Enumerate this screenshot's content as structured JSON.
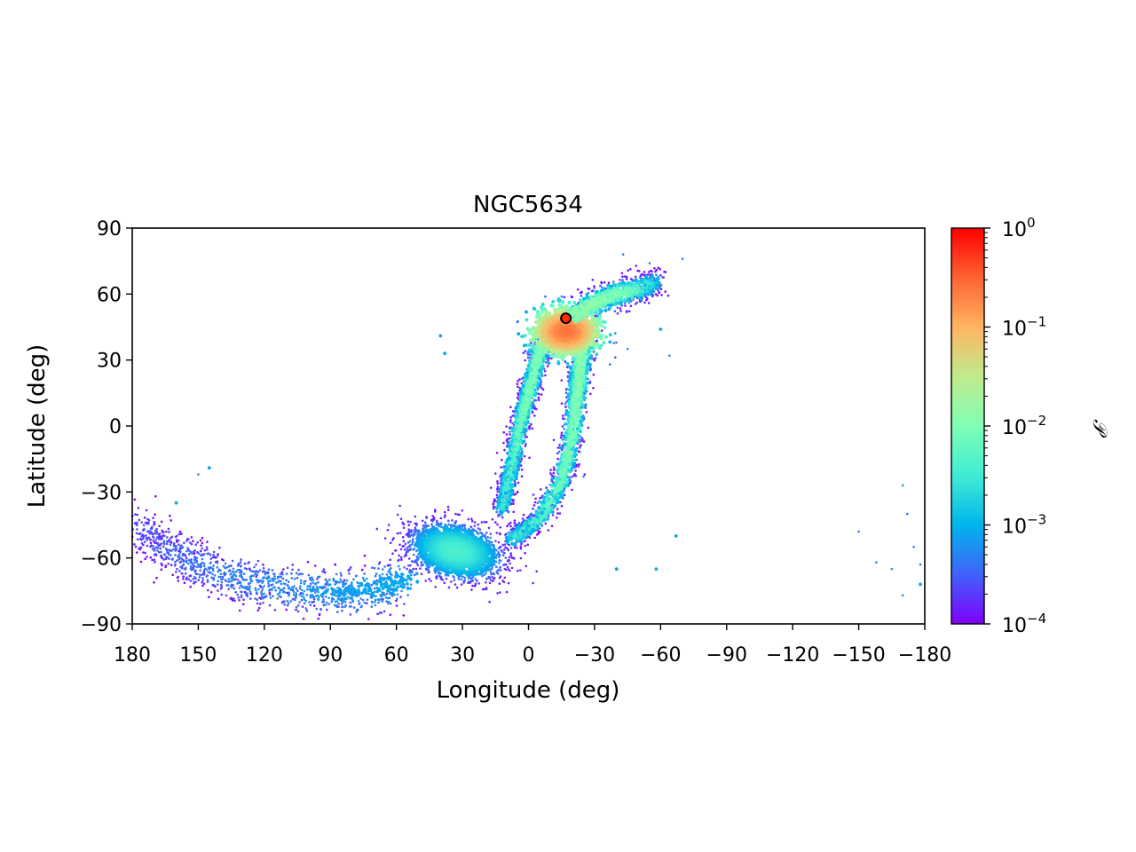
{
  "chart_data": {
    "type": "scatter",
    "title": "NGC5634",
    "xlabel": "Longitude (deg)",
    "ylabel": "Latitude (deg)",
    "xlim": [
      180,
      -180
    ],
    "ylim": [
      -90,
      90
    ],
    "xticks": [
      180,
      150,
      120,
      90,
      60,
      30,
      0,
      -30,
      -60,
      -90,
      -120,
      -150,
      -180
    ],
    "xtick_labels": [
      "180",
      "150",
      "120",
      "90",
      "60",
      "30",
      "0",
      "−30",
      "−60",
      "−90",
      "−120",
      "−150",
      "−180"
    ],
    "yticks": [
      90,
      60,
      30,
      0,
      -30,
      -60,
      -90
    ],
    "ytick_labels": [
      "90",
      "60",
      "30",
      "0",
      "−30",
      "−60",
      "−90"
    ],
    "grid": false,
    "colorbar": {
      "label": "𝒫",
      "scale": "log",
      "range": [
        0.0001,
        1
      ],
      "tick_values": [
        1,
        0.1,
        0.01,
        0.001,
        0.0001
      ],
      "tick_bases": [
        "10",
        "10",
        "10",
        "10",
        "10"
      ],
      "tick_exponents": [
        "0",
        "−1",
        "−2",
        "−3",
        "−4"
      ],
      "colormap": "rainbow",
      "colors": [
        "#8000ff",
        "#4062fa",
        "#00b5eb",
        "#40ecd4",
        "#80ffb4",
        "#c0eb8d",
        "#ffb462",
        "#ff6232",
        "#ff0000"
      ]
    },
    "cluster_marker": {
      "name": "NGC5634",
      "lon": -17,
      "lat": 49,
      "fill": "#ff2a00",
      "edge": "#000000"
    },
    "stream_features": [
      {
        "name": "dense core",
        "lon_range": [
          -35,
          -5
        ],
        "lat_range": [
          35,
          55
        ],
        "peak_probability": 0.2
      },
      {
        "name": "leading tail",
        "lon_range": [
          -60,
          -20
        ],
        "lat_range": [
          50,
          78
        ],
        "peak_probability": 0.01
      },
      {
        "name": "left trailing arm",
        "lon_range": [
          -5,
          20
        ],
        "lat_range": [
          -35,
          40
        ],
        "peak_probability": 0.005
      },
      {
        "name": "right trailing arm",
        "lon_range": [
          -30,
          5
        ],
        "lat_range": [
          -40,
          40
        ],
        "peak_probability": 0.005
      },
      {
        "name": "southern lobe",
        "lon_range": [
          10,
          60
        ],
        "lat_range": [
          -70,
          -40
        ],
        "peak_probability": 0.003
      },
      {
        "name": "extended tail",
        "lon_range": [
          60,
          180
        ],
        "lat_range": [
          -88,
          -20
        ],
        "peak_probability": 0.0005
      }
    ]
  }
}
